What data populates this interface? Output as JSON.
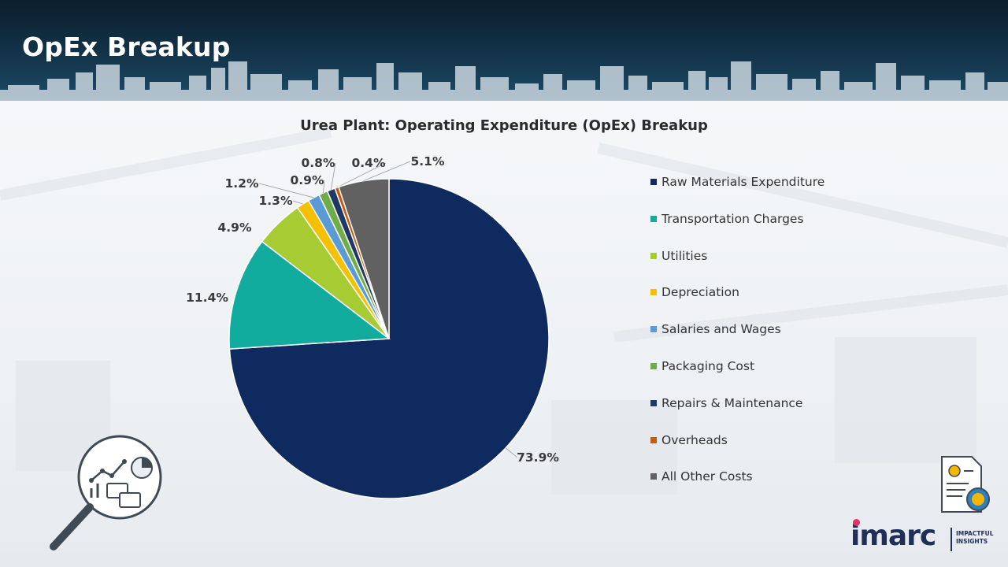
{
  "page": {
    "title": "OpEx Breakup"
  },
  "chart_data": {
    "type": "pie",
    "title": "Urea Plant: Operating Expenditure (OpEx) Breakup",
    "unit": "%",
    "legend_position": "right",
    "categories": [
      "Raw Materials Expenditure",
      "Transportation Charges",
      "Utilities",
      "Depreciation",
      "Salaries and Wages",
      "Packaging Cost",
      "Repairs & Maintenance",
      "Overheads",
      "All Other Costs"
    ],
    "values": [
      73.9,
      11.4,
      4.9,
      1.3,
      1.2,
      0.9,
      0.8,
      0.4,
      5.1
    ],
    "labels": [
      "73.9%",
      "11.4%",
      "4.9%",
      "1.3%",
      "1.2%",
      "0.9%",
      "0.8%",
      "0.4%",
      "5.1%"
    ],
    "colors": [
      "#0f2a5f",
      "#12ac9e",
      "#a7cc33",
      "#f5c000",
      "#5b9bd5",
      "#71ad47",
      "#203864",
      "#c55a11",
      "#616161"
    ]
  },
  "branding": {
    "logo_text": "imarc",
    "logo_tagline_line1": "IMPACTFUL",
    "logo_tagline_line2": "INSIGHTS"
  },
  "icons": [
    "analytics-magnifier-icon",
    "cost-document-icon",
    "city-skyline-decoration"
  ]
}
